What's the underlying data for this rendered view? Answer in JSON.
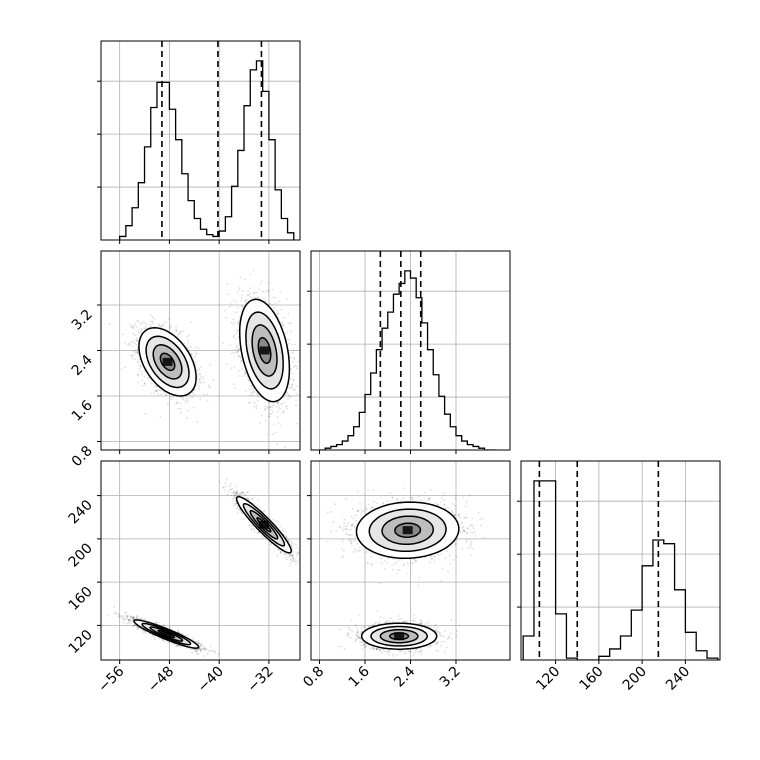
{
  "chart_data": {
    "type": "corner",
    "grid": true,
    "parameters": [
      {
        "ticks": [
          -56,
          -48,
          -40,
          -32
        ],
        "tick_labels": [
          "−56",
          "−48",
          "−40",
          "−32"
        ],
        "range": [
          -59,
          -27
        ]
      },
      {
        "ticks": [
          0.8,
          1.6,
          2.4,
          3.2
        ],
        "tick_labels": [
          "0.8",
          "1.6",
          "2.4",
          "3.2"
        ],
        "range": [
          0.65,
          4.15
        ]
      },
      {
        "ticks": [
          120,
          160,
          200,
          240
        ],
        "tick_labels": [
          "120",
          "160",
          "200",
          "240"
        ],
        "range": [
          88,
          272
        ]
      }
    ],
    "histograms": [
      {
        "param": 0,
        "bin_edges": [
          -56,
          -55,
          -54,
          -53,
          -52,
          -51,
          -50,
          -49,
          -48,
          -47,
          -46,
          -45,
          -44,
          -43,
          -42,
          -41,
          -40,
          -39,
          -38,
          -37,
          -36,
          -35,
          -34,
          -33,
          -32,
          -31,
          -30,
          -29,
          -28
        ],
        "counts": [
          0.02,
          0.08,
          0.18,
          0.32,
          0.52,
          0.74,
          0.88,
          0.88,
          0.73,
          0.56,
          0.37,
          0.22,
          0.12,
          0.06,
          0.03,
          0.02,
          0.05,
          0.13,
          0.3,
          0.5,
          0.75,
          0.95,
          1.0,
          0.83,
          0.56,
          0.28,
          0.12,
          0.04
        ],
        "quantiles": [
          -49.2,
          -40.2,
          -33.2
        ]
      },
      {
        "param": 1,
        "bin_edges": [
          0.8,
          0.9,
          1.0,
          1.1,
          1.2,
          1.3,
          1.4,
          1.5,
          1.6,
          1.7,
          1.8,
          1.9,
          2.0,
          2.1,
          2.2,
          2.3,
          2.4,
          2.5,
          2.6,
          2.7,
          2.8,
          2.9,
          3.0,
          3.1,
          3.2,
          3.3,
          3.4,
          3.5,
          3.6,
          3.7,
          3.8,
          3.9
        ],
        "counts": [
          0.0,
          0.01,
          0.02,
          0.03,
          0.05,
          0.08,
          0.13,
          0.21,
          0.31,
          0.43,
          0.56,
          0.68,
          0.77,
          0.87,
          0.93,
          1.0,
          0.96,
          0.85,
          0.71,
          0.56,
          0.42,
          0.3,
          0.2,
          0.13,
          0.08,
          0.05,
          0.03,
          0.02,
          0.01,
          0.0,
          0.0
        ],
        "quantiles": [
          1.87,
          2.23,
          2.58
        ]
      },
      {
        "param": 2,
        "bin_edges": [
          90,
          100,
          110,
          120,
          130,
          140,
          150,
          160,
          170,
          180,
          190,
          200,
          210,
          220,
          230,
          240,
          250,
          260,
          270
        ],
        "counts": [
          0.13,
          0.97,
          0.97,
          0.25,
          0.01,
          0.0,
          0.0,
          0.02,
          0.06,
          0.13,
          0.27,
          0.51,
          0.65,
          0.63,
          0.38,
          0.15,
          0.05,
          0.01
        ],
        "quantiles": [
          105,
          140,
          215
        ]
      }
    ],
    "density_2d": [
      {
        "x_param": 0,
        "y_param": 1,
        "modes": [
          {
            "mean": [
              -48.3,
              2.2
            ],
            "sd": [
              2.3,
              0.3
            ],
            "rho": -0.45,
            "weight": 0.5
          },
          {
            "mean": [
              -32.7,
              2.4
            ],
            "sd": [
              2.0,
              0.45
            ],
            "rho": -0.35,
            "weight": 0.5
          }
        ]
      },
      {
        "x_param": 0,
        "y_param": 2,
        "modes": [
          {
            "mean": [
              -48.5,
              112.0
            ],
            "sd": [
              2.6,
              6.5
            ],
            "rho": -0.92,
            "weight": 0.5
          },
          {
            "mean": [
              -32.8,
              213.0
            ],
            "sd": [
              2.2,
              13.0
            ],
            "rho": -0.93,
            "weight": 0.5
          }
        ]
      },
      {
        "x_param": 1,
        "y_param": 2,
        "modes": [
          {
            "mean": [
              2.2,
              110.0
            ],
            "sd": [
              0.33,
              6.0
            ],
            "rho": 0.0,
            "weight": 0.5
          },
          {
            "mean": [
              2.35,
              208.0
            ],
            "sd": [
              0.45,
              13.0
            ],
            "rho": 0.05,
            "weight": 0.5
          }
        ]
      }
    ],
    "contour_levels_sigma": [
      0.5,
      1.0,
      1.5,
      2.0
    ]
  }
}
